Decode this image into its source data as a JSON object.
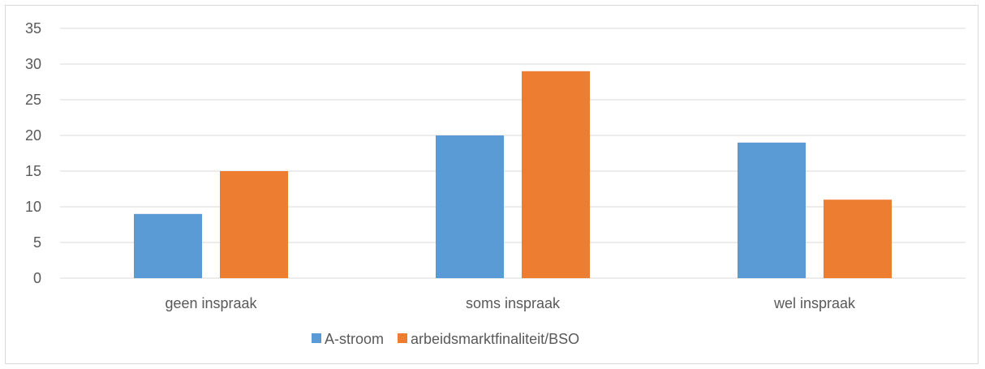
{
  "chart_data": {
    "type": "bar",
    "categories": [
      "geen inspraak",
      "soms inspraak",
      "wel inspraak"
    ],
    "series": [
      {
        "name": "A-stroom",
        "values": [
          9,
          20,
          19
        ],
        "color": "#5b9bd5"
      },
      {
        "name": "arbeidsmarktfinaliteit/BSO",
        "values": [
          15,
          29,
          11
        ],
        "color": "#ed7d31"
      }
    ],
    "ylim": [
      0,
      35
    ],
    "yticks": [
      0,
      5,
      10,
      15,
      20,
      25,
      30,
      35
    ],
    "grid": true,
    "legend": "bottom"
  }
}
